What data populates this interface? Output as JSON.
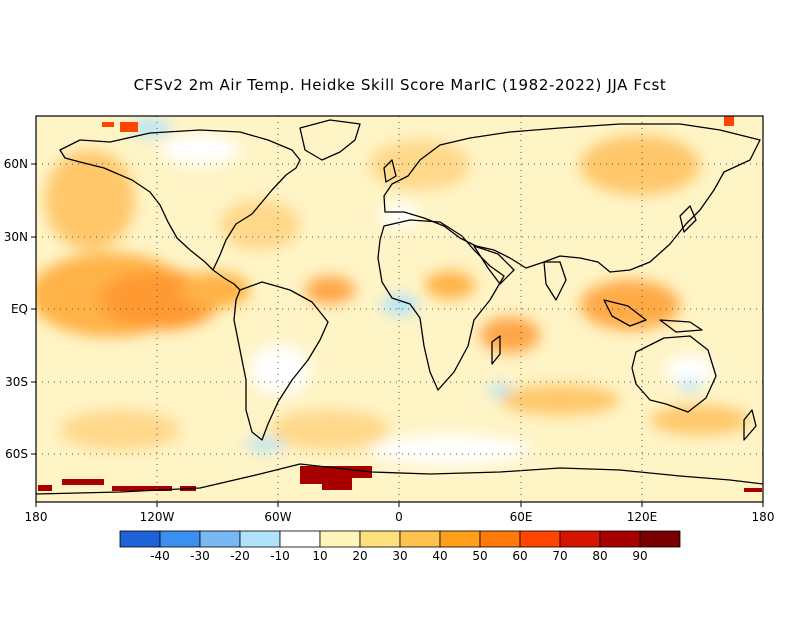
{
  "title": "CFSv2 2m Air Temp. Heidke Skill Score MarIC (1982-2022) JJA Fcst",
  "map": {
    "projection": "equirectangular",
    "lon_range": [
      -180,
      180
    ],
    "lat_range": [
      -80,
      80
    ],
    "x_tick_labels": [
      "180",
      "120W",
      "60W",
      "0",
      "60E",
      "120E",
      "180"
    ],
    "y_tick_labels": [
      "60N",
      "30N",
      "EQ",
      "30S",
      "60S"
    ],
    "grid": "dotted"
  },
  "colorbar": {
    "labels": [
      "-40",
      "-30",
      "-20",
      "-10",
      "10",
      "20",
      "30",
      "40",
      "50",
      "60",
      "70",
      "80",
      "90"
    ],
    "colors": [
      "#1e62d8",
      "#3b8ff0",
      "#7ab8f5",
      "#b0e2fb",
      "#ffffff",
      "#fff5b8",
      "#ffe07d",
      "#ffc24d",
      "#ff9f1a",
      "#ff7a0a",
      "#ff4500",
      "#d61500",
      "#a80000",
      "#780000"
    ]
  }
}
